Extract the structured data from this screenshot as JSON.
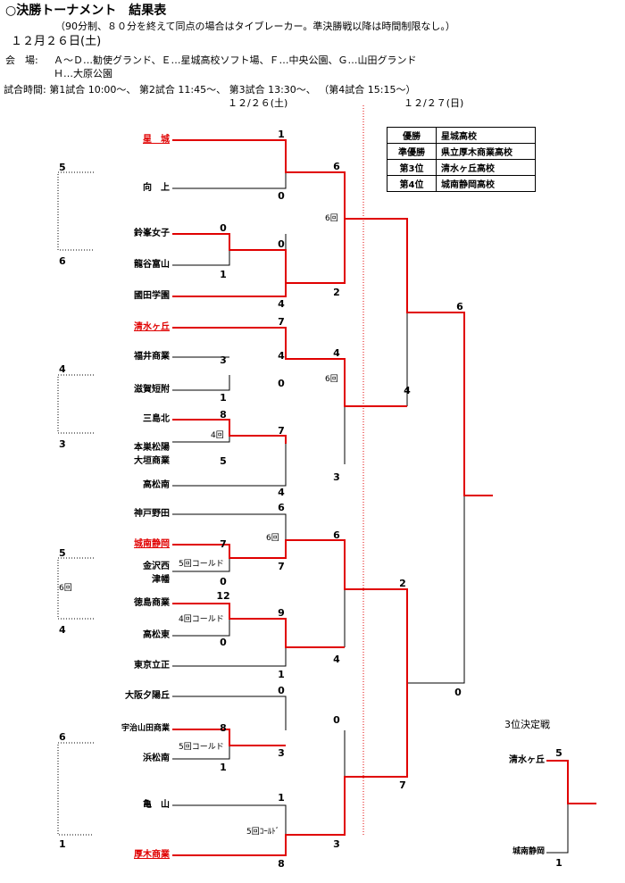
{
  "header": {
    "title": "○決勝トーナメント　結果表",
    "subtitle": "（90分制、８０分を終えて同点の場合はタイブレーカー。準決勝戦以降は時間制限なし。）",
    "date": "１２月２６日(土)",
    "venue_label": "会　場:",
    "venue_line1": "Ａ～Ｄ…勧使グランド、Ｅ…星城高校ソフト場、Ｆ…中央公園、Ｇ…山田グランド",
    "venue_line2": "Ｈ…大原公園",
    "times": "試合時間: 第1試合  10:00～、    第2試合  11:45～、    第3試合  13:30～、    （第4試合  15:15～）",
    "day1": "１２/２６(土)",
    "day2": "１２/２７(日)"
  },
  "results": [
    {
      "label": "優勝",
      "value": "星城高校"
    },
    {
      "label": "準優勝",
      "value": "県立厚木商業高校"
    },
    {
      "label": "第3位",
      "value": "清水ヶ丘高校"
    },
    {
      "label": "第4位",
      "value": "城南静岡高校"
    }
  ],
  "teams": [
    "星　城",
    "向　上",
    "鈴峯女子",
    "龍谷富山",
    "國田学園",
    "清水ヶ丘",
    "福井商業",
    "滋賀短附",
    "三島北",
    "本巣松陽",
    "大垣商業",
    "高松南",
    "神戸野田",
    "城南静岡",
    "金沢西",
    "津幡",
    "徳島商業",
    "高松東",
    "東京立正",
    "大阪夕陽丘",
    "宇治山田商業",
    "浜松南",
    "亀　山",
    "厚木商業"
  ],
  "scores": [
    "1",
    "0",
    "6",
    "0",
    "4",
    "0",
    "4",
    "1",
    "2",
    "7",
    "4",
    "7",
    "3",
    "0",
    "4",
    "1",
    "8",
    "7",
    "5",
    "4",
    "3",
    "6",
    "7",
    "4",
    "2",
    "7",
    "0",
    "6",
    "9",
    "12",
    "0",
    "4",
    "1",
    "2",
    "0",
    "0",
    "8",
    "1",
    "3",
    "0",
    "1",
    "7",
    "3",
    "8",
    "6"
  ],
  "notes": [
    "6回",
    "6回",
    "4回",
    "6回",
    "5回コールド",
    "4回コールド",
    "5回コールド",
    "5回ｺｰﾙﾄﾞ"
  ],
  "groups": [
    "5",
    "6",
    "4",
    "3",
    "5",
    "4",
    "6",
    "1"
  ],
  "group_note": "6回",
  "third_place": {
    "title": "3位決定戦",
    "team1": "清水ヶ丘",
    "team2": "城南静岡",
    "score1": "5",
    "score2": "1"
  }
}
